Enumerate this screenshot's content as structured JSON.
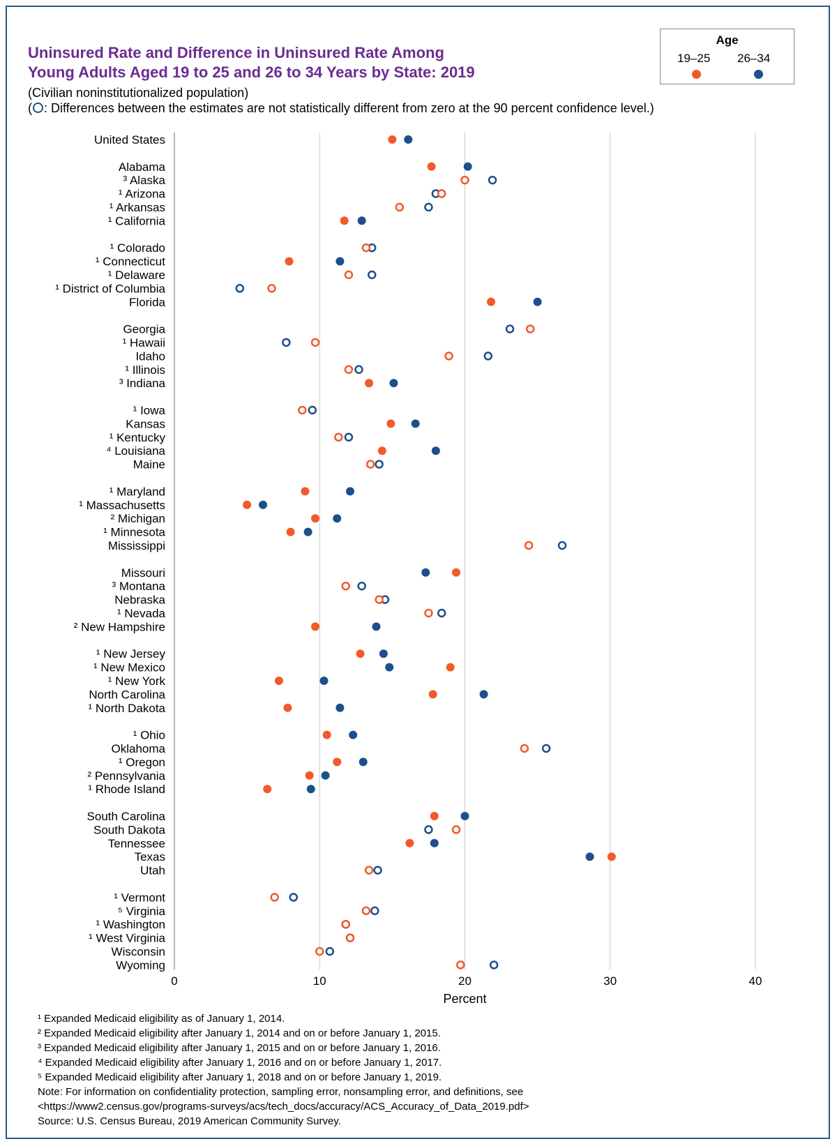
{
  "title_line1": "Uninsured Rate and Difference in Uninsured Rate Among",
  "title_line2": "Young Adults Aged 19 to 25 and 26 to 34 Years by State: 2019",
  "subtitle1": "(Civilian noninstitutionalized population)",
  "subtitle2_open": "(",
  "subtitle2_text": ": Differences between the estimates are not statistically different from zero at the 90 percent confidence level.)",
  "legend": {
    "title": "Age",
    "label_1925": "19–25",
    "label_2634": "26–34"
  },
  "colors": {
    "age_19_25": "#f15a29",
    "age_26_34": "#1c4f8c",
    "gridline": "#c8c8c8",
    "title": "#6b2c91"
  },
  "chart_data": {
    "type": "scatter",
    "xlabel": "Percent",
    "xlim": [
      0,
      40
    ],
    "xticks": [
      0,
      10,
      20,
      30,
      40
    ],
    "grid": true,
    "legend_position": "top-right",
    "series": [
      {
        "name": "19–25",
        "key": "a"
      },
      {
        "name": "26–34",
        "key": "b"
      }
    ],
    "groups": [
      [
        {
          "label": "United States",
          "a": 15.0,
          "b": 16.1,
          "sig": true
        }
      ],
      [
        {
          "label": "Alabama",
          "a": 17.7,
          "b": 20.2,
          "sig": true
        },
        {
          "label": "³ Alaska",
          "a": 20.0,
          "b": 21.9,
          "sig": false
        },
        {
          "label": "¹ Arizona",
          "a": 18.4,
          "b": 18.0,
          "sig": false
        },
        {
          "label": "¹ Arkansas",
          "a": 15.5,
          "b": 17.5,
          "sig": false
        },
        {
          "label": "¹ California",
          "a": 11.7,
          "b": 12.9,
          "sig": true
        }
      ],
      [
        {
          "label": "¹ Colorado",
          "a": 13.2,
          "b": 13.6,
          "sig": false
        },
        {
          "label": "¹ Connecticut",
          "a": 7.9,
          "b": 11.4,
          "sig": true
        },
        {
          "label": "¹ Delaware",
          "a": 12.0,
          "b": 13.6,
          "sig": false
        },
        {
          "label": "¹ District of Columbia",
          "a": 6.7,
          "b": 4.5,
          "sig": false
        },
        {
          "label": "Florida",
          "a": 21.8,
          "b": 25.0,
          "sig": true
        }
      ],
      [
        {
          "label": "Georgia",
          "a": 24.5,
          "b": 23.1,
          "sig": false
        },
        {
          "label": "¹ Hawaii",
          "a": 9.7,
          "b": 7.7,
          "sig": false
        },
        {
          "label": "Idaho",
          "a": 18.9,
          "b": 21.6,
          "sig": false
        },
        {
          "label": "¹ Illinois",
          "a": 12.0,
          "b": 12.7,
          "sig": false
        },
        {
          "label": "³ Indiana",
          "a": 13.4,
          "b": 15.1,
          "sig": true
        }
      ],
      [
        {
          "label": "¹ Iowa",
          "a": 8.8,
          "b": 9.5,
          "sig": false
        },
        {
          "label": "Kansas",
          "a": 14.9,
          "b": 16.6,
          "sig": true
        },
        {
          "label": "¹ Kentucky",
          "a": 11.3,
          "b": 12.0,
          "sig": false
        },
        {
          "label": "⁴ Louisiana",
          "a": 14.3,
          "b": 18.0,
          "sig": true
        },
        {
          "label": "Maine",
          "a": 13.5,
          "b": 14.1,
          "sig": false
        }
      ],
      [
        {
          "label": "¹ Maryland",
          "a": 9.0,
          "b": 12.1,
          "sig": true
        },
        {
          "label": "¹ Massachusetts",
          "a": 5.0,
          "b": 6.1,
          "sig": true
        },
        {
          "label": "² Michigan",
          "a": 9.7,
          "b": 11.2,
          "sig": true
        },
        {
          "label": "¹ Minnesota",
          "a": 8.0,
          "b": 9.2,
          "sig": true
        },
        {
          "label": "Mississippi",
          "a": 24.4,
          "b": 26.7,
          "sig": false
        }
      ],
      [
        {
          "label": "Missouri",
          "a": 19.4,
          "b": 17.3,
          "sig": true
        },
        {
          "label": "³ Montana",
          "a": 11.8,
          "b": 12.9,
          "sig": false
        },
        {
          "label": "Nebraska",
          "a": 14.1,
          "b": 14.5,
          "sig": false
        },
        {
          "label": "¹ Nevada",
          "a": 17.5,
          "b": 18.4,
          "sig": false
        },
        {
          "label": "² New Hampshire",
          "a": 9.7,
          "b": 13.9,
          "sig": true
        }
      ],
      [
        {
          "label": "¹ New Jersey",
          "a": 12.8,
          "b": 14.4,
          "sig": true
        },
        {
          "label": "¹ New Mexico",
          "a": 19.0,
          "b": 14.8,
          "sig": true
        },
        {
          "label": "¹ New York",
          "a": 7.2,
          "b": 10.3,
          "sig": true
        },
        {
          "label": "North Carolina",
          "a": 17.8,
          "b": 21.3,
          "sig": true
        },
        {
          "label": "¹ North Dakota",
          "a": 7.8,
          "b": 11.4,
          "sig": true
        }
      ],
      [
        {
          "label": "¹ Ohio",
          "a": 10.5,
          "b": 12.3,
          "sig": true
        },
        {
          "label": "Oklahoma",
          "a": 24.1,
          "b": 25.6,
          "sig": false
        },
        {
          "label": "¹ Oregon",
          "a": 11.2,
          "b": 13.0,
          "sig": true
        },
        {
          "label": "² Pennsylvania",
          "a": 9.3,
          "b": 10.4,
          "sig": true
        },
        {
          "label": "¹ Rhode Island",
          "a": 6.4,
          "b": 9.4,
          "sig": true
        }
      ],
      [
        {
          "label": "South Carolina",
          "a": 17.9,
          "b": 20.0,
          "sig": true
        },
        {
          "label": "South Dakota",
          "a": 19.4,
          "b": 17.5,
          "sig": false
        },
        {
          "label": "Tennessee",
          "a": 16.2,
          "b": 17.9,
          "sig": true
        },
        {
          "label": "Texas",
          "a": 30.1,
          "b": 28.6,
          "sig": true
        },
        {
          "label": "Utah",
          "a": 13.4,
          "b": 14.0,
          "sig": false
        }
      ],
      [
        {
          "label": "¹ Vermont",
          "a": 6.9,
          "b": 8.2,
          "sig": false
        },
        {
          "label": "⁵ Virginia",
          "a": 13.2,
          "b": 13.8,
          "sig": false
        },
        {
          "label": "¹ Washington",
          "a": 11.8,
          "b": 11.8,
          "sig": false
        },
        {
          "label": "¹ West Virginia",
          "a": 12.1,
          "b": 12.1,
          "sig": false
        },
        {
          "label": "Wisconsin",
          "a": 10.0,
          "b": 10.7,
          "sig": false
        },
        {
          "label": "Wyoming",
          "a": 19.7,
          "b": 22.0,
          "sig": false
        }
      ]
    ]
  },
  "footnotes": [
    "¹ Expanded Medicaid eligibility as of January 1, 2014.",
    "² Expanded Medicaid eligibility after January 1, 2014 and on or before January 1, 2015.",
    "³ Expanded Medicaid eligibility after January 1, 2015 and on or before January 1, 2016.",
    "⁴ Expanded Medicaid eligibility after January 1, 2016 and on or before January 1, 2017.",
    "⁵ Expanded Medicaid eligibility after January 1, 2018 and on or before January 1, 2019.",
    "Note: For information on confidentiality protection, sampling error, nonsampling error, and definitions, see",
    "<https://www2.census.gov/programs-surveys/acs/tech_docs/accuracy/ACS_Accuracy_of_Data_2019.pdf>",
    "Source: U.S. Census Bureau, 2019 American Community Survey."
  ]
}
